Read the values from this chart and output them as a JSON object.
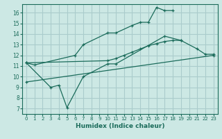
{
  "xlabel": "Humidex (Indice chaleur)",
  "background_color": "#cce8e4",
  "grid_color": "#aacccc",
  "line_color": "#1a6b5a",
  "xlim": [
    -0.5,
    23.5
  ],
  "ylim": [
    6.5,
    16.8
  ],
  "yticks": [
    7,
    8,
    9,
    10,
    11,
    12,
    13,
    14,
    15,
    16
  ],
  "xticks": [
    0,
    1,
    2,
    3,
    4,
    5,
    6,
    7,
    8,
    9,
    10,
    11,
    12,
    13,
    14,
    15,
    16,
    17,
    18,
    19,
    20,
    21,
    22,
    23
  ],
  "lines": [
    {
      "x": [
        0,
        1,
        6,
        7,
        10,
        11,
        13,
        14,
        15,
        16,
        17,
        18
      ],
      "y": [
        11.3,
        11.1,
        12.0,
        13.0,
        14.1,
        14.1,
        14.8,
        15.1,
        15.1,
        16.5,
        16.2,
        16.2
      ]
    },
    {
      "x": [
        0,
        10,
        11,
        12,
        13,
        14,
        15,
        16,
        17,
        18,
        19,
        21,
        22,
        23
      ],
      "y": [
        11.3,
        11.5,
        11.7,
        12.0,
        12.3,
        12.6,
        12.9,
        13.1,
        13.3,
        13.4,
        13.4,
        12.6,
        12.1,
        12.1
      ]
    },
    {
      "x": [
        0,
        3,
        4,
        5,
        7,
        10,
        11,
        17,
        19
      ],
      "y": [
        11.3,
        9.0,
        9.2,
        7.1,
        10.0,
        11.2,
        11.2,
        13.8,
        13.4
      ]
    },
    {
      "x": [
        0,
        23
      ],
      "y": [
        9.5,
        12.0
      ]
    }
  ]
}
